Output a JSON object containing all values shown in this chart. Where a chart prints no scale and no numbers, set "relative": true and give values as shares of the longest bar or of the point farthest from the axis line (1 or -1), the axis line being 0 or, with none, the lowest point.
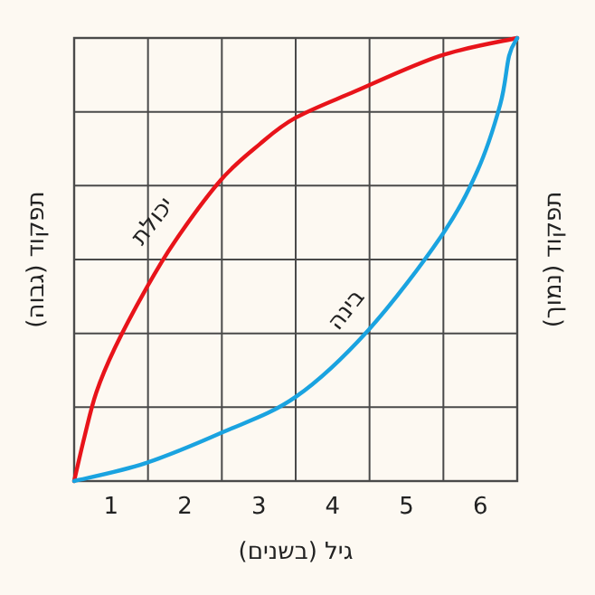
{
  "chart_data": {
    "type": "line",
    "relative": true,
    "xlabel": "גיל (בשנים)",
    "ylabel": "תפקוד (גבוה)",
    "y2label": "תפקוד (נמוך)",
    "xlim": [
      0.5,
      6.5
    ],
    "xticks": [
      1,
      2,
      3,
      4,
      5,
      6
    ],
    "grid": true,
    "legend": false,
    "series": [
      {
        "name": "יכולת",
        "color": "#e8141a",
        "x": [
          0.5,
          0.64,
          0.8,
          1.05,
          1.46,
          1.86,
          2.49,
          3.01,
          3.5,
          4.31,
          5.46,
          6.5
        ],
        "values": [
          0,
          0.1,
          0.2,
          0.3,
          0.43,
          0.54,
          0.68,
          0.76,
          0.82,
          0.88,
          0.96,
          1
        ]
      },
      {
        "name": "בינה",
        "color": "#1aa3e0",
        "x": [
          0.5,
          1.46,
          2.51,
          3.5,
          4.48,
          5.46,
          5.96,
          6.27,
          6.39,
          6.5
        ],
        "values": [
          0,
          0.04,
          0.11,
          0.19,
          0.34,
          0.55,
          0.7,
          0.85,
          0.96,
          1
        ]
      }
    ]
  }
}
